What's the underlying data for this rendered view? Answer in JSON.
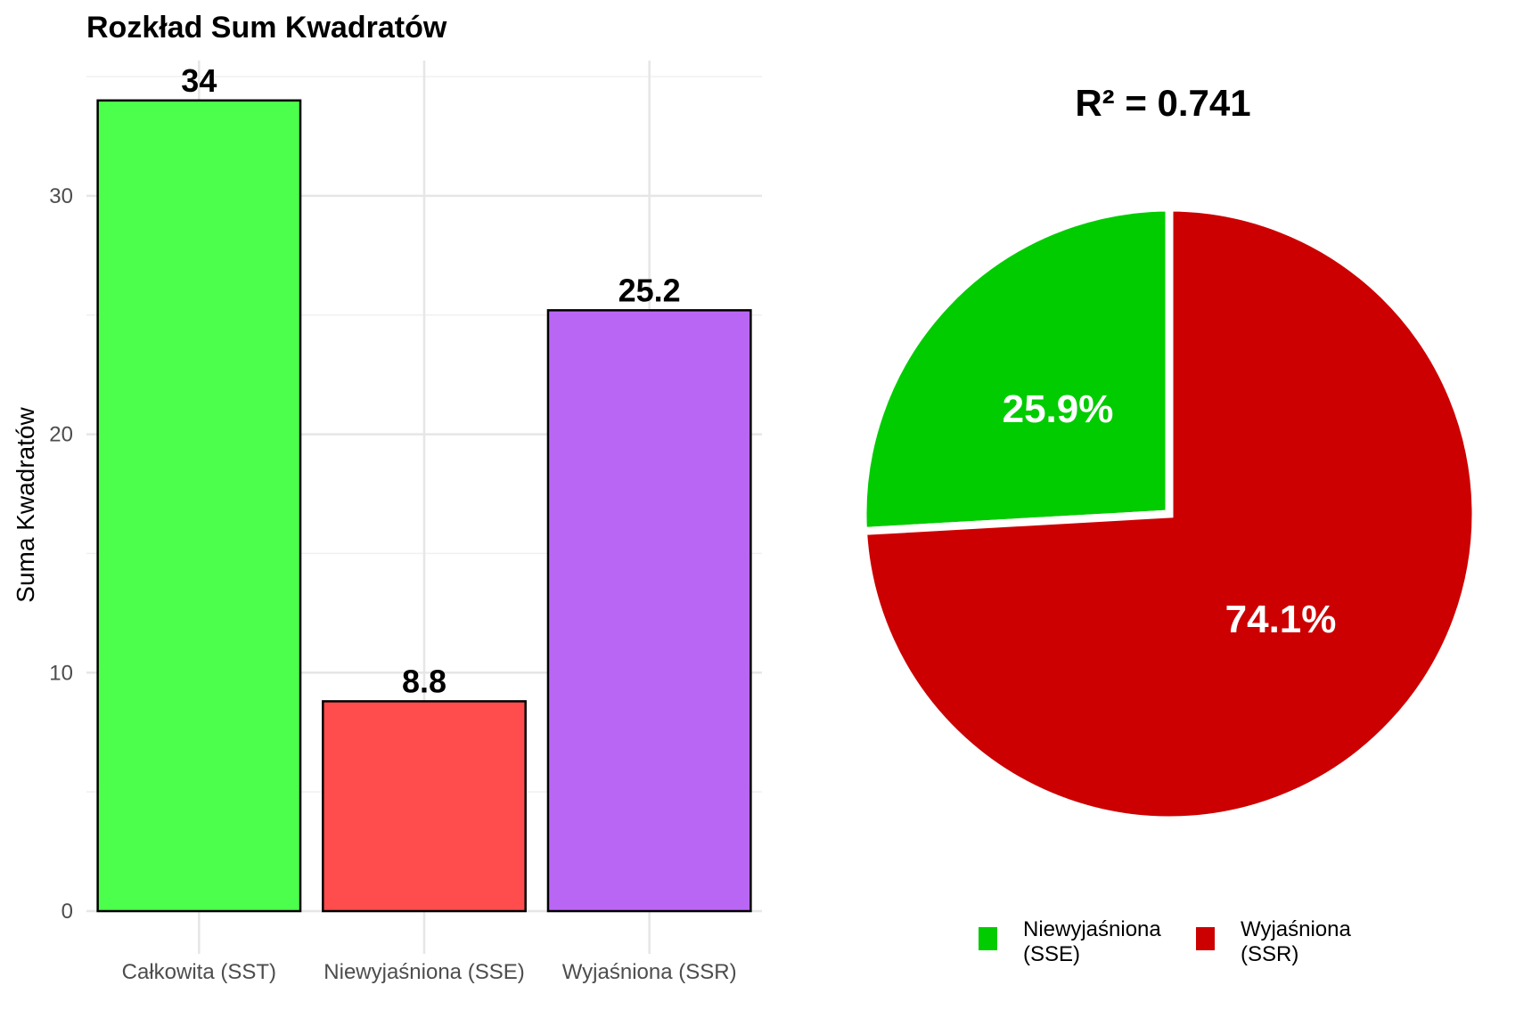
{
  "chart_data": [
    {
      "type": "bar",
      "title": "Rozkład Sum Kwadratów",
      "xlabel": "",
      "ylabel": "Suma Kwadratów",
      "categories": [
        "Całkowita (SST)",
        "Niewyjaśniona (SSE)",
        "Wyjaśniona (SSR)"
      ],
      "values": [
        34,
        8.8,
        25.2
      ],
      "value_labels": [
        "34",
        "8.8",
        "25.2"
      ],
      "colors": [
        "#4CFF4C",
        "#FF4C4C",
        "#BA66F5"
      ],
      "yticks": [
        0,
        10,
        20,
        30
      ],
      "ylim": [
        0,
        35
      ],
      "grid": true
    },
    {
      "type": "pie",
      "title": "R² = 0.741",
      "slices": [
        {
          "label": "Niewyjaśniona (SSE)",
          "legend_lines": [
            "Niewyjaśniona",
            "(SSE)"
          ],
          "value": 25.9,
          "text": "25.9%",
          "color": "#00CC00"
        },
        {
          "label": "Wyjaśniona (SSR)",
          "legend_lines": [
            "Wyjaśniona",
            "(SSR)"
          ],
          "value": 74.1,
          "text": "74.1%",
          "color": "#CC0000"
        }
      ],
      "legend_position": "bottom"
    }
  ]
}
